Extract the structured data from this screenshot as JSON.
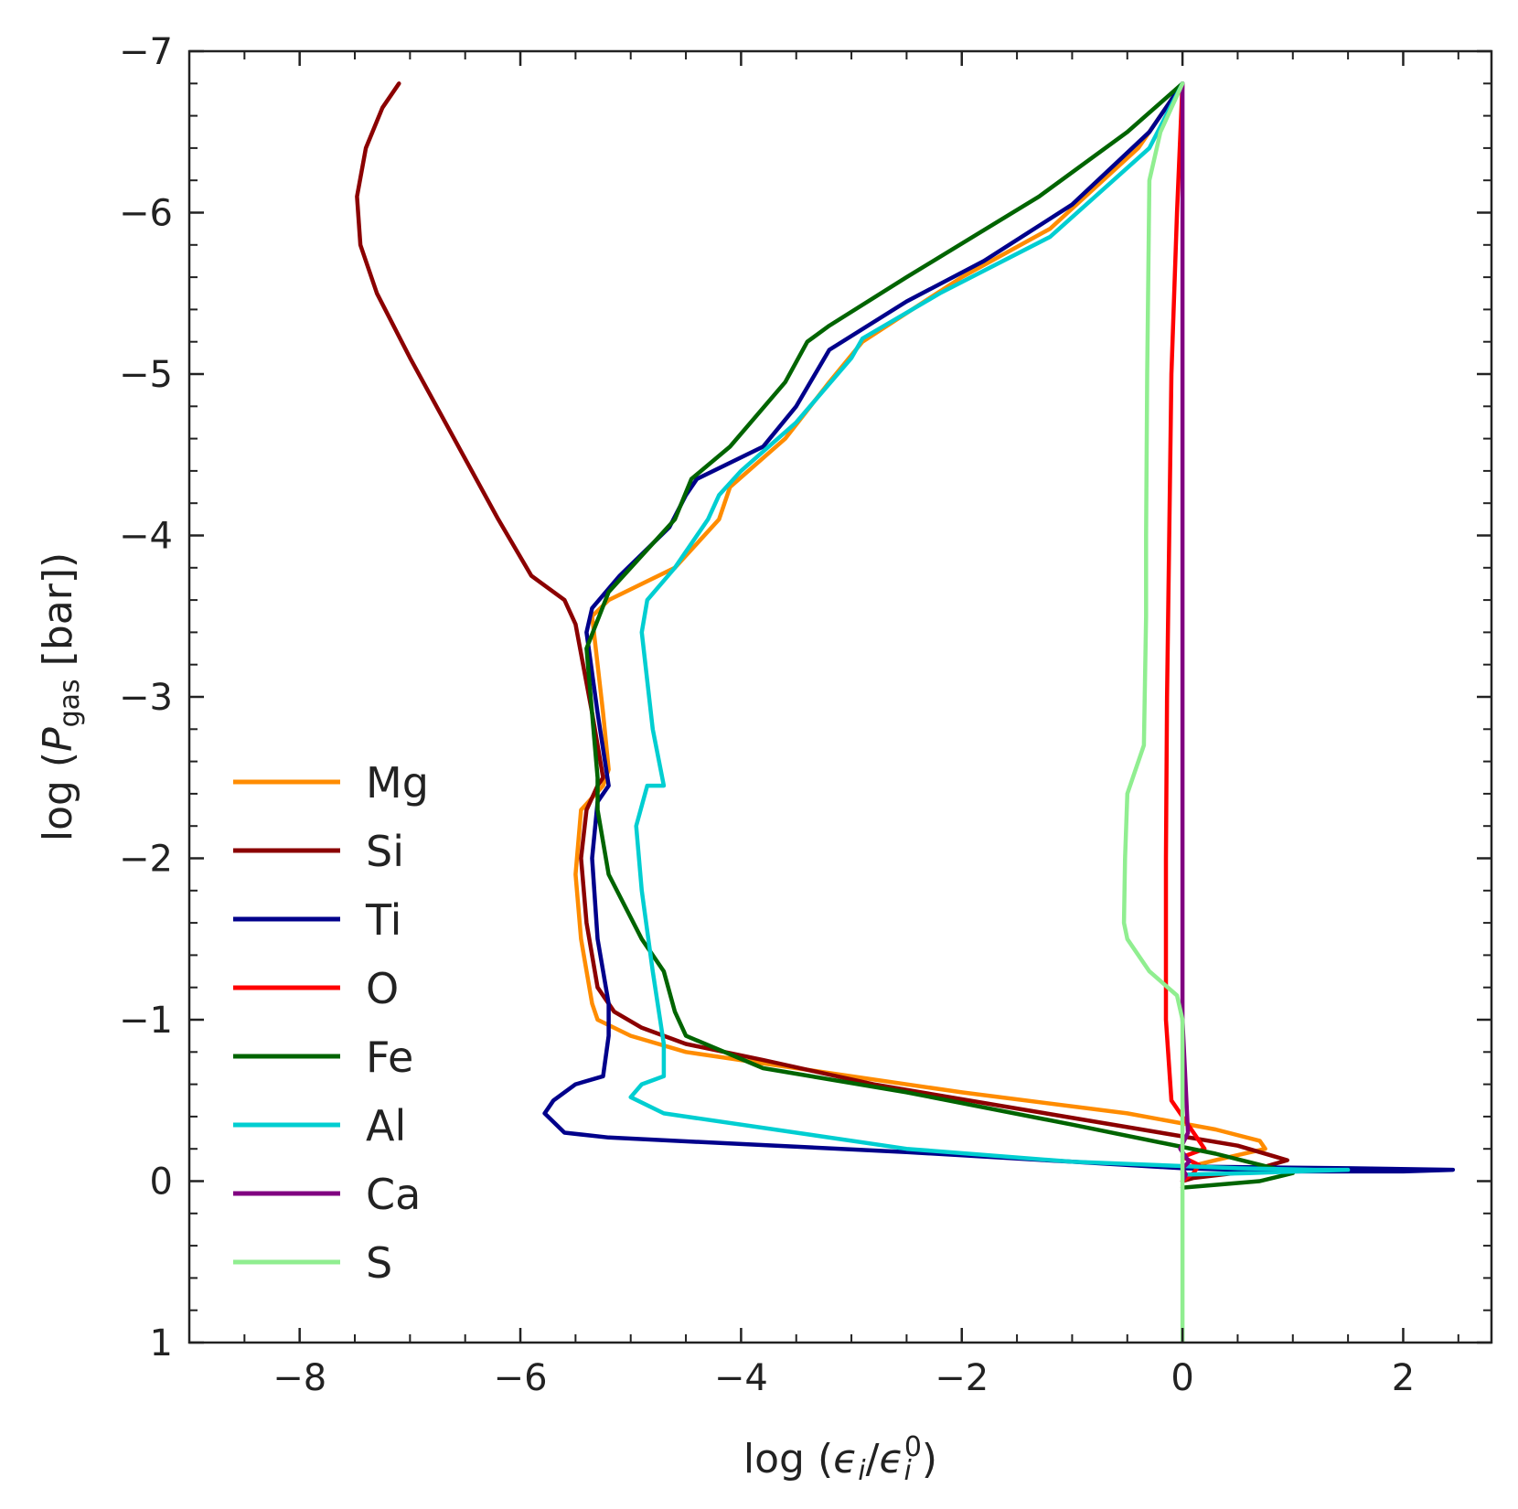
{
  "chart_data": {
    "type": "line",
    "title": "",
    "xlabel": {
      "prefix": "log (",
      "num": "ϵ",
      "num_sub": "i",
      "slash": "/",
      "den": "ϵ",
      "den_sub": "i",
      "den_sup": "0",
      "suffix": ")"
    },
    "ylabel": {
      "prefix": "log (",
      "var": "P",
      "var_sub": "gas",
      "suffix": " [bar])"
    },
    "xlim": [
      -9,
      2.8
    ],
    "ylim": [
      1,
      -7
    ],
    "y_inverted": true,
    "xticks": [
      -8,
      -6,
      -4,
      -2,
      0,
      2
    ],
    "xtick_labels": [
      "−8",
      "−6",
      "−4",
      "−2",
      "0",
      "2"
    ],
    "yticks": [
      -7,
      -6,
      -5,
      -4,
      -3,
      -2,
      -1,
      0,
      1
    ],
    "ytick_labels": [
      "−7",
      "−6",
      "−5",
      "−4",
      "−3",
      "−2",
      "−1",
      "0",
      "1"
    ],
    "grid": false,
    "legend_position": "lower-left",
    "series": [
      {
        "name": "Mg",
        "color": "#ff8c00",
        "points": [
          [
            0,
            -6.8
          ],
          [
            -0.4,
            -6.4
          ],
          [
            -1.2,
            -5.9
          ],
          [
            -2.0,
            -5.6
          ],
          [
            -2.9,
            -5.2
          ],
          [
            -3.2,
            -4.95
          ],
          [
            -3.6,
            -4.6
          ],
          [
            -4.1,
            -4.3
          ],
          [
            -4.2,
            -4.1
          ],
          [
            -4.6,
            -3.8
          ],
          [
            -5.2,
            -3.6
          ],
          [
            -5.35,
            -3.5
          ],
          [
            -5.3,
            -3.2
          ],
          [
            -5.25,
            -2.9
          ],
          [
            -5.2,
            -2.55
          ],
          [
            -5.25,
            -2.45
          ],
          [
            -5.45,
            -2.3
          ],
          [
            -5.5,
            -1.9
          ],
          [
            -5.45,
            -1.5
          ],
          [
            -5.35,
            -1.1
          ],
          [
            -5.3,
            -1.0
          ],
          [
            -5.0,
            -0.9
          ],
          [
            -4.5,
            -0.8
          ],
          [
            -3.5,
            -0.7
          ],
          [
            -2.0,
            -0.55
          ],
          [
            -0.5,
            -0.42
          ],
          [
            0.3,
            -0.32
          ],
          [
            0.7,
            -0.25
          ],
          [
            0.75,
            -0.2
          ],
          [
            0.3,
            -0.13
          ],
          [
            0.0,
            -0.08
          ],
          [
            0.0,
            -0.05
          ]
        ]
      },
      {
        "name": "Si",
        "color": "#8b0000",
        "points": [
          [
            -7.1,
            -6.8
          ],
          [
            -7.25,
            -6.65
          ],
          [
            -7.4,
            -6.4
          ],
          [
            -7.48,
            -6.1
          ],
          [
            -7.45,
            -5.8
          ],
          [
            -7.3,
            -5.5
          ],
          [
            -7.0,
            -5.1
          ],
          [
            -6.6,
            -4.6
          ],
          [
            -6.2,
            -4.1
          ],
          [
            -5.9,
            -3.75
          ],
          [
            -5.6,
            -3.6
          ],
          [
            -5.5,
            -3.45
          ],
          [
            -5.35,
            -2.9
          ],
          [
            -5.25,
            -2.5
          ],
          [
            -5.3,
            -2.45
          ],
          [
            -5.4,
            -2.3
          ],
          [
            -5.45,
            -2.0
          ],
          [
            -5.4,
            -1.6
          ],
          [
            -5.3,
            -1.2
          ],
          [
            -5.15,
            -1.05
          ],
          [
            -4.9,
            -0.95
          ],
          [
            -4.5,
            -0.85
          ],
          [
            -3.8,
            -0.75
          ],
          [
            -2.8,
            -0.6
          ],
          [
            -1.5,
            -0.45
          ],
          [
            -0.2,
            -0.3
          ],
          [
            0.5,
            -0.22
          ],
          [
            0.95,
            -0.13
          ],
          [
            0.6,
            -0.06
          ],
          [
            0.1,
            -0.02
          ],
          [
            0.0,
            0.0
          ]
        ]
      },
      {
        "name": "Ti",
        "color": "#00008b",
        "points": [
          [
            0,
            -6.8
          ],
          [
            -0.3,
            -6.5
          ],
          [
            -1.0,
            -6.05
          ],
          [
            -1.8,
            -5.7
          ],
          [
            -2.5,
            -5.45
          ],
          [
            -3.2,
            -5.15
          ],
          [
            -3.5,
            -4.8
          ],
          [
            -3.8,
            -4.55
          ],
          [
            -4.4,
            -4.35
          ],
          [
            -4.5,
            -4.25
          ],
          [
            -4.65,
            -4.05
          ],
          [
            -5.1,
            -3.75
          ],
          [
            -5.35,
            -3.55
          ],
          [
            -5.4,
            -3.4
          ],
          [
            -5.3,
            -2.9
          ],
          [
            -5.2,
            -2.45
          ],
          [
            -5.3,
            -2.35
          ],
          [
            -5.35,
            -2.0
          ],
          [
            -5.3,
            -1.5
          ],
          [
            -5.2,
            -1.1
          ],
          [
            -5.2,
            -0.9
          ],
          [
            -5.25,
            -0.65
          ],
          [
            -5.5,
            -0.6
          ],
          [
            -5.7,
            -0.5
          ],
          [
            -5.78,
            -0.42
          ],
          [
            -5.6,
            -0.3
          ],
          [
            -5.2,
            -0.27
          ],
          [
            -4.0,
            -0.23
          ],
          [
            -2.5,
            -0.18
          ],
          [
            -1.0,
            -0.12
          ],
          [
            0.0,
            -0.08
          ],
          [
            1.0,
            -0.06
          ],
          [
            2.0,
            -0.06
          ],
          [
            2.45,
            -0.07
          ],
          [
            1.5,
            -0.08
          ],
          [
            0.1,
            -0.09
          ]
        ]
      },
      {
        "name": "O",
        "color": "#ff0000",
        "points": [
          [
            0,
            -6.8
          ],
          [
            -0.05,
            -6.0
          ],
          [
            -0.1,
            -5.0
          ],
          [
            -0.12,
            -4.0
          ],
          [
            -0.14,
            -3.0
          ],
          [
            -0.15,
            -2.0
          ],
          [
            -0.15,
            -1.0
          ],
          [
            -0.1,
            -0.5
          ],
          [
            0.1,
            -0.3
          ],
          [
            0.2,
            -0.2
          ],
          [
            0.0,
            -0.15
          ],
          [
            0.15,
            -0.1
          ],
          [
            0.1,
            -0.05
          ],
          [
            0.0,
            0.0
          ]
        ]
      },
      {
        "name": "Fe",
        "color": "#006400",
        "points": [
          [
            0,
            -6.8
          ],
          [
            -0.5,
            -6.5
          ],
          [
            -1.3,
            -6.1
          ],
          [
            -2.5,
            -5.6
          ],
          [
            -3.2,
            -5.3
          ],
          [
            -3.4,
            -5.2
          ],
          [
            -3.6,
            -4.95
          ],
          [
            -4.1,
            -4.55
          ],
          [
            -4.45,
            -4.35
          ],
          [
            -4.6,
            -4.1
          ],
          [
            -5.2,
            -3.65
          ],
          [
            -5.4,
            -3.3
          ],
          [
            -5.3,
            -2.5
          ],
          [
            -5.3,
            -2.3
          ],
          [
            -5.2,
            -1.9
          ],
          [
            -4.9,
            -1.5
          ],
          [
            -4.7,
            -1.3
          ],
          [
            -4.6,
            -1.05
          ],
          [
            -4.5,
            -0.9
          ],
          [
            -3.8,
            -0.7
          ],
          [
            -2.5,
            -0.55
          ],
          [
            -1.0,
            -0.35
          ],
          [
            0.3,
            -0.17
          ],
          [
            1.0,
            -0.05
          ],
          [
            0.7,
            0.0
          ],
          [
            0.0,
            0.04
          ]
        ]
      },
      {
        "name": "Al",
        "color": "#00ced1",
        "points": [
          [
            0,
            -6.8
          ],
          [
            -0.3,
            -6.4
          ],
          [
            -1.2,
            -5.85
          ],
          [
            -2.2,
            -5.5
          ],
          [
            -2.9,
            -5.22
          ],
          [
            -3.0,
            -5.1
          ],
          [
            -3.5,
            -4.7
          ],
          [
            -4.0,
            -4.4
          ],
          [
            -4.2,
            -4.25
          ],
          [
            -4.3,
            -4.1
          ],
          [
            -4.6,
            -3.8
          ],
          [
            -4.85,
            -3.6
          ],
          [
            -4.9,
            -3.4
          ],
          [
            -4.8,
            -2.8
          ],
          [
            -4.7,
            -2.45
          ],
          [
            -4.85,
            -2.45
          ],
          [
            -4.95,
            -2.2
          ],
          [
            -4.9,
            -1.8
          ],
          [
            -4.8,
            -1.3
          ],
          [
            -4.7,
            -0.85
          ],
          [
            -4.7,
            -0.65
          ],
          [
            -4.9,
            -0.6
          ],
          [
            -5.0,
            -0.52
          ],
          [
            -4.7,
            -0.42
          ],
          [
            -3.5,
            -0.3
          ],
          [
            -2.5,
            -0.2
          ],
          [
            -1.0,
            -0.12
          ],
          [
            0.5,
            -0.08
          ],
          [
            1.2,
            -0.07
          ],
          [
            1.5,
            -0.07
          ],
          [
            0.6,
            -0.05
          ],
          [
            0.0,
            -0.04
          ]
        ]
      },
      {
        "name": "Ca",
        "color": "#800080",
        "points": [
          [
            0,
            -6.8
          ],
          [
            0,
            -5.0
          ],
          [
            0,
            -3.0
          ],
          [
            0,
            -1.5
          ],
          [
            0,
            -1.0
          ],
          [
            0.05,
            -0.3
          ],
          [
            -0.02,
            -0.2
          ],
          [
            0.06,
            -0.12
          ],
          [
            0.0,
            -0.08
          ],
          [
            0.03,
            -0.04
          ],
          [
            0.0,
            0.0
          ]
        ]
      },
      {
        "name": "S",
        "color": "#90ee90",
        "points": [
          [
            0,
            -6.8
          ],
          [
            -0.2,
            -6.5
          ],
          [
            -0.3,
            -6.2
          ],
          [
            -0.32,
            -5.0
          ],
          [
            -0.33,
            -4.0
          ],
          [
            -0.33,
            -3.5
          ],
          [
            -0.35,
            -2.7
          ],
          [
            -0.5,
            -2.4
          ],
          [
            -0.52,
            -2.0
          ],
          [
            -0.53,
            -1.6
          ],
          [
            -0.5,
            -1.5
          ],
          [
            -0.3,
            -1.3
          ],
          [
            -0.05,
            -1.15
          ],
          [
            0.0,
            -1.0
          ],
          [
            0.0,
            0.0
          ],
          [
            0.0,
            1.0
          ]
        ]
      }
    ]
  }
}
